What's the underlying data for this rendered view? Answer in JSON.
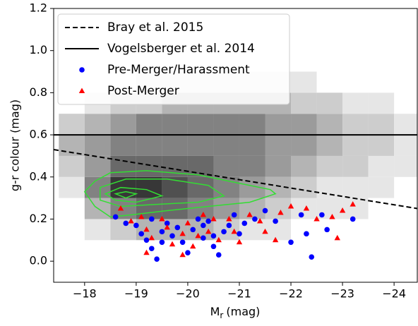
{
  "chart_data": {
    "type": "scatter",
    "ylabel": "g-r colour (mag)",
    "xlabel": {
      "symbol": "M",
      "subscript": "r",
      "unit": "(mag)"
    },
    "xlim": [
      -17.4,
      -24.45
    ],
    "ylim": [
      -0.1,
      1.2
    ],
    "xticks": [
      {
        "value": -18,
        "label": "−18"
      },
      {
        "value": -19,
        "label": "−19"
      },
      {
        "value": -20,
        "label": "−20"
      },
      {
        "value": -21,
        "label": "−21"
      },
      {
        "value": -22,
        "label": "−22"
      },
      {
        "value": -23,
        "label": "−23"
      },
      {
        "value": -24,
        "label": "−24"
      }
    ],
    "yticks": [
      {
        "value": 0,
        "label": "0.0"
      },
      0.2,
      0.4,
      0.6,
      0.8,
      {
        "value": 1,
        "label": "1.0"
      },
      1.2
    ],
    "legend": "upper left",
    "histogram2d": {
      "cmap": "Greys",
      "x_edges": [
        -17.5,
        -18,
        -18.5,
        -19,
        -19.5,
        -20,
        -20.5,
        -21,
        -21.5,
        -22,
        -22.5,
        -23,
        -23.5,
        -24,
        -24.5
      ],
      "y_edges": [
        0.1,
        0.2,
        0.3,
        0.4,
        0.5,
        0.6,
        0.7,
        0.8,
        0.9
      ],
      "counts": [
        [
          0,
          1,
          2,
          3,
          3,
          3,
          2,
          1,
          1,
          0,
          0,
          0,
          0,
          0
        ],
        [
          0,
          3,
          5,
          6,
          6,
          5,
          4,
          3,
          2,
          1,
          1,
          1,
          0,
          0
        ],
        [
          1,
          5,
          8,
          8,
          7,
          6,
          5,
          4,
          3,
          2,
          1,
          1,
          1,
          0
        ],
        [
          2,
          4,
          6,
          6,
          6,
          6,
          5,
          5,
          4,
          3,
          2,
          2,
          1,
          1
        ],
        [
          3,
          4,
          5,
          5,
          5,
          5,
          5,
          5,
          4,
          4,
          3,
          2,
          2,
          1
        ],
        [
          2,
          3,
          4,
          5,
          5,
          5,
          5,
          5,
          4,
          4,
          3,
          2,
          2,
          1
        ],
        [
          0,
          1,
          2,
          2,
          3,
          3,
          3,
          3,
          3,
          2,
          2,
          1,
          1,
          0
        ],
        [
          0,
          0,
          0,
          1,
          1,
          1,
          1,
          1,
          1,
          1,
          0,
          0,
          0,
          0
        ]
      ]
    },
    "contour_color": "#33dd33",
    "contours": [
      {
        "x": [
          -18.2,
          -18.5,
          -19.2,
          -20.2,
          -21,
          -21.6,
          -21.7,
          -21.2,
          -20.4,
          -19.6,
          -18.9,
          -18.5,
          -18.2,
          -18.0
        ],
        "y": [
          0.38,
          0.42,
          0.43,
          0.41,
          0.37,
          0.34,
          0.32,
          0.28,
          0.26,
          0.24,
          0.22,
          0.21,
          0.26,
          0.33
        ]
      },
      {
        "x": [
          -18.3,
          -18.8,
          -19.6,
          -20.4,
          -20.7,
          -20.2,
          -19.4,
          -18.7,
          -18.3
        ],
        "y": [
          0.35,
          0.39,
          0.39,
          0.36,
          0.31,
          0.28,
          0.27,
          0.26,
          0.29
        ]
      },
      {
        "x": [
          -18.4,
          -18.7,
          -19.2,
          -19.5,
          -19.0,
          -18.6
        ],
        "y": [
          0.32,
          0.35,
          0.34,
          0.31,
          0.28,
          0.29
        ]
      },
      {
        "x": [
          -18.6,
          -18.8,
          -19.0,
          -18.8
        ],
        "y": [
          0.32,
          0.33,
          0.32,
          0.3
        ]
      }
    ],
    "series": [
      {
        "name": "Bray et al. 2015",
        "kind": "line",
        "linestyle": "dashed",
        "color": "#000000",
        "x": [
          -17.4,
          -24.45
        ],
        "y": [
          0.53,
          0.25
        ]
      },
      {
        "name": "Vogelsberger et al. 2014",
        "kind": "line",
        "linestyle": "solid",
        "color": "#000000",
        "x": [
          -17.4,
          -24.45
        ],
        "y": [
          0.6,
          0.6
        ]
      },
      {
        "name": "Pre-Merger/Harassment",
        "kind": "scatter",
        "marker": "circle",
        "color": "#0000ff",
        "x": [
          -18.6,
          -18.8,
          -19.0,
          -19.1,
          -19.2,
          -19.3,
          -19.4,
          -19.5,
          -19.6,
          -19.7,
          -19.8,
          -19.9,
          -20.0,
          -20.1,
          -20.2,
          -20.3,
          -20.4,
          -20.5,
          -20.6,
          -20.7,
          -20.8,
          -20.9,
          -21.0,
          -21.1,
          -21.3,
          -21.5,
          -21.7,
          -22.0,
          -22.2,
          -22.3,
          -22.4,
          -22.6,
          -22.7,
          -23.2,
          -19.3,
          -20.3,
          -19.5,
          -20.5
        ],
        "y": [
          0.21,
          0.18,
          0.17,
          0.13,
          0.1,
          0.06,
          0.01,
          0.14,
          0.18,
          0.12,
          0.16,
          0.09,
          0.04,
          0.15,
          0.2,
          0.11,
          0.19,
          0.07,
          0.03,
          0.14,
          0.17,
          0.22,
          0.13,
          0.18,
          0.2,
          0.24,
          0.19,
          0.09,
          0.22,
          0.13,
          0.02,
          0.22,
          0.15,
          0.2,
          0.2,
          0.17,
          0.09,
          0.12
        ]
      },
      {
        "name": "Post-Merger",
        "kind": "scatter",
        "marker": "triangle",
        "color": "#ff0000",
        "x": [
          -18.7,
          -18.9,
          -19.1,
          -19.2,
          -19.3,
          -19.5,
          -19.6,
          -19.7,
          -19.9,
          -20.0,
          -20.1,
          -20.2,
          -20.3,
          -20.4,
          -20.5,
          -20.6,
          -20.8,
          -20.9,
          -21.0,
          -21.2,
          -21.4,
          -21.5,
          -21.7,
          -21.8,
          -22.0,
          -22.3,
          -22.5,
          -22.8,
          -22.9,
          -23.0,
          -23.2,
          -19.9,
          -19.2
        ],
        "y": [
          0.25,
          0.19,
          0.21,
          0.15,
          0.11,
          0.2,
          0.16,
          0.08,
          0.13,
          0.18,
          0.07,
          0.12,
          0.22,
          0.14,
          0.2,
          0.1,
          0.2,
          0.14,
          0.09,
          0.22,
          0.19,
          0.14,
          0.1,
          0.23,
          0.26,
          0.25,
          0.2,
          0.21,
          0.11,
          0.24,
          0.27,
          0.03,
          0.04
        ]
      }
    ]
  }
}
